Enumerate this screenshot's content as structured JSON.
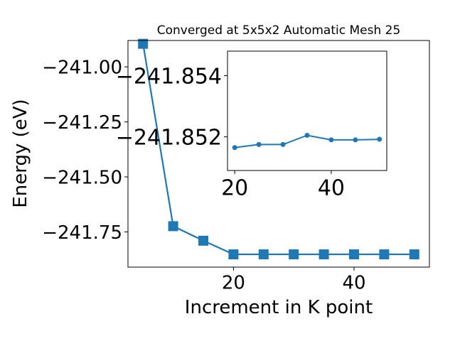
{
  "chart_data": [
    {
      "type": "line",
      "title": "Converged at 5x5x2 Automatic Mesh 25",
      "xlabel": "Increment in K point",
      "ylabel": "Energy (eV)",
      "xlim": [
        2.5,
        52.5
      ],
      "ylim": [
        -241.91,
        -240.88
      ],
      "xticks": [
        20,
        40
      ],
      "xtick_labels": [
        "20",
        "40"
      ],
      "yticks": [
        -241.0,
        -241.25,
        -241.5,
        -241.75
      ],
      "ytick_labels": [
        "−241.00",
        "−241.25",
        "−241.50",
        "−241.75"
      ],
      "grid": false,
      "marker": "square",
      "color": "#1f77b4",
      "series": [
        {
          "x": [
            5,
            10,
            15,
            20,
            25,
            30,
            35,
            40,
            45,
            50
          ],
          "y": [
            -240.895,
            -241.724,
            -241.79,
            -241.852,
            -241.852,
            -241.852,
            -241.852,
            -241.852,
            -241.852,
            -241.852
          ]
        }
      ]
    },
    {
      "type": "line",
      "title": "",
      "xlabel": "",
      "ylabel": "",
      "xlim": [
        18.5,
        51.5
      ],
      "ylim": [
        -241.8509,
        -241.8548
      ],
      "xticks": [
        20,
        40
      ],
      "xtick_labels": [
        "20",
        "40"
      ],
      "yticks": [
        -241.854,
        -241.852
      ],
      "ytick_labels": [
        "−241.854",
        "−241.852"
      ],
      "grid": false,
      "marker": "circle",
      "color": "#1f77b4",
      "series": [
        {
          "x": [
            20,
            25,
            30,
            35,
            40,
            45,
            50
          ],
          "y": [
            -241.85165,
            -241.85175,
            -241.85175,
            -241.85205,
            -241.8519,
            -241.8519,
            -241.85192
          ]
        }
      ]
    }
  ]
}
